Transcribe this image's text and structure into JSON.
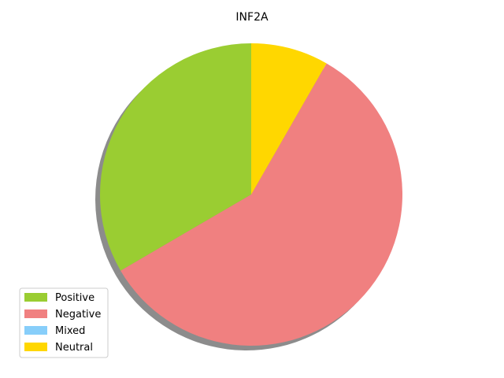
{
  "chart_data": {
    "type": "pie",
    "title": "INF2A",
    "categories": [
      "Positive",
      "Negative",
      "Mixed",
      "Neutral"
    ],
    "values": [
      33.4,
      58.3,
      0,
      8.3
    ],
    "colors": [
      "#9acd32",
      "#f08080",
      "#87cefa",
      "#ffd700"
    ],
    "start_angle_deg": 90,
    "direction": "counterclockwise",
    "shadow": true,
    "legend": {
      "placement": "lower-left",
      "entries": [
        "Positive",
        "Negative",
        "Mixed",
        "Neutral"
      ]
    }
  }
}
